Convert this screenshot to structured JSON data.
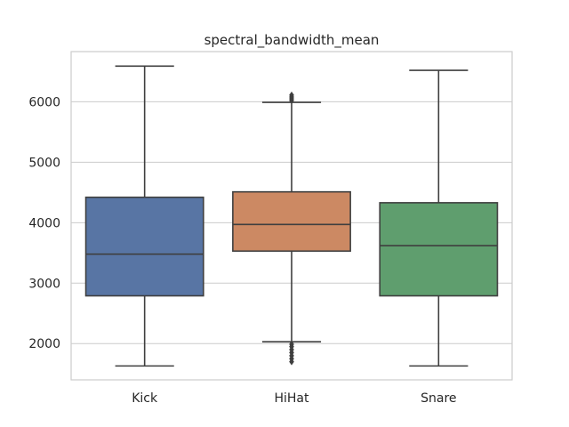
{
  "chart_data": {
    "type": "box",
    "title": "spectral_bandwidth_mean",
    "xlabel": "",
    "ylabel": "",
    "categories": [
      "Kick",
      "HiHat",
      "Snare"
    ],
    "ylim": [
      1400,
      6830
    ],
    "yticks": [
      2000,
      3000,
      4000,
      5000,
      6000
    ],
    "grid": true,
    "boxes": [
      {
        "name": "Kick",
        "color": "#5875a4",
        "whisker_low": 1630,
        "q1": 2790,
        "median": 3480,
        "q3": 4420,
        "whisker_high": 6590,
        "fliers": []
      },
      {
        "name": "HiHat",
        "color": "#cc8963",
        "whisker_low": 2030,
        "q1": 3530,
        "median": 3970,
        "q3": 4510,
        "whisker_high": 5990,
        "fliers": [
          6020,
          6050,
          6080,
          6110,
          1990,
          1950,
          1900,
          1850,
          1800,
          1750,
          1700
        ]
      },
      {
        "name": "Snare",
        "color": "#5f9e6e",
        "whisker_low": 1630,
        "q1": 2790,
        "median": 3620,
        "q3": 4330,
        "whisker_high": 6520,
        "fliers": []
      }
    ]
  }
}
